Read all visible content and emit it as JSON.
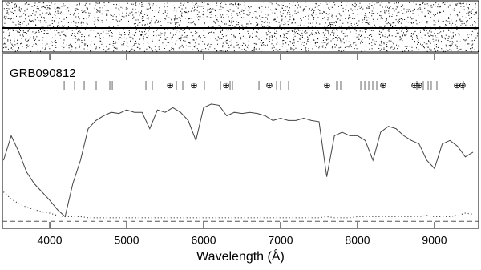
{
  "chart_data": {
    "type": "line",
    "title": "GRB090812",
    "xlabel": "Wavelength (Å)",
    "xlim": [
      3385,
      9573
    ],
    "xticks": [
      4000,
      5000,
      6000,
      7000,
      8000,
      9000
    ],
    "ylim": [
      -0.06,
      1.43
    ],
    "hline": 0,
    "x": [
      3400,
      3500,
      3600,
      3700,
      3800,
      3900,
      4000,
      4100,
      4200,
      4300,
      4400,
      4500,
      4600,
      4700,
      4800,
      4900,
      5000,
      5100,
      5200,
      5300,
      5400,
      5500,
      5600,
      5700,
      5800,
      5900,
      6000,
      6100,
      6200,
      6300,
      6400,
      6500,
      6600,
      6700,
      6800,
      6900,
      7000,
      7100,
      7200,
      7300,
      7400,
      7500,
      7600,
      7700,
      7800,
      7900,
      8000,
      8100,
      8200,
      8300,
      8400,
      8500,
      8600,
      8700,
      8800,
      8900,
      9000,
      9100,
      9200,
      9300,
      9400,
      9500
    ],
    "series": [
      {
        "color": "#444444",
        "style": "solid",
        "values": [
          0.52,
          0.73,
          0.59,
          0.42,
          0.32,
          0.25,
          0.18,
          0.1,
          0.04,
          0.32,
          0.52,
          0.79,
          0.86,
          0.9,
          0.93,
          0.92,
          0.95,
          0.93,
          0.93,
          0.79,
          0.95,
          0.93,
          0.97,
          0.93,
          0.86,
          0.69,
          0.97,
          1.0,
          0.99,
          0.9,
          0.93,
          0.92,
          0.93,
          0.92,
          0.9,
          0.86,
          0.88,
          0.86,
          0.86,
          0.88,
          0.86,
          0.85,
          0.38,
          0.73,
          0.76,
          0.73,
          0.73,
          0.69,
          0.52,
          0.76,
          0.81,
          0.79,
          0.73,
          0.69,
          0.66,
          0.52,
          0.45,
          0.66,
          0.69,
          0.64,
          0.55,
          0.59
        ]
      },
      {
        "color": "#333333",
        "style": "dotted",
        "values": [
          0.25,
          0.19,
          0.15,
          0.12,
          0.1,
          0.08,
          0.07,
          0.05,
          0.04,
          0.04,
          0.04,
          0.03,
          0.03,
          0.03,
          0.03,
          0.03,
          0.03,
          0.03,
          0.03,
          0.03,
          0.03,
          0.03,
          0.03,
          0.03,
          0.03,
          0.03,
          0.03,
          0.03,
          0.03,
          0.03,
          0.03,
          0.03,
          0.03,
          0.03,
          0.03,
          0.03,
          0.03,
          0.03,
          0.03,
          0.03,
          0.03,
          0.03,
          0.04,
          0.03,
          0.03,
          0.03,
          0.04,
          0.04,
          0.04,
          0.04,
          0.04,
          0.04,
          0.04,
          0.04,
          0.04,
          0.05,
          0.04,
          0.04,
          0.04,
          0.05,
          0.07,
          0.06
        ]
      }
    ],
    "line_marks": [
      4188,
      4323,
      4448,
      4604,
      4781,
      4813,
      5250,
      5333,
      5646,
      5729,
      6010,
      6219,
      6344,
      6375,
      6719,
      6948,
      7000,
      7104,
      7729,
      7781,
      8042,
      8094,
      8146,
      8198,
      8250,
      8771,
      8854,
      8917,
      8958,
      9031,
      9375
    ],
    "telluric_marks": {
      "label": "⊕",
      "x": [
        5563,
        5875,
        6292,
        6854,
        7604,
        8333,
        8740,
        8802,
        9292,
        9365
      ]
    }
  }
}
